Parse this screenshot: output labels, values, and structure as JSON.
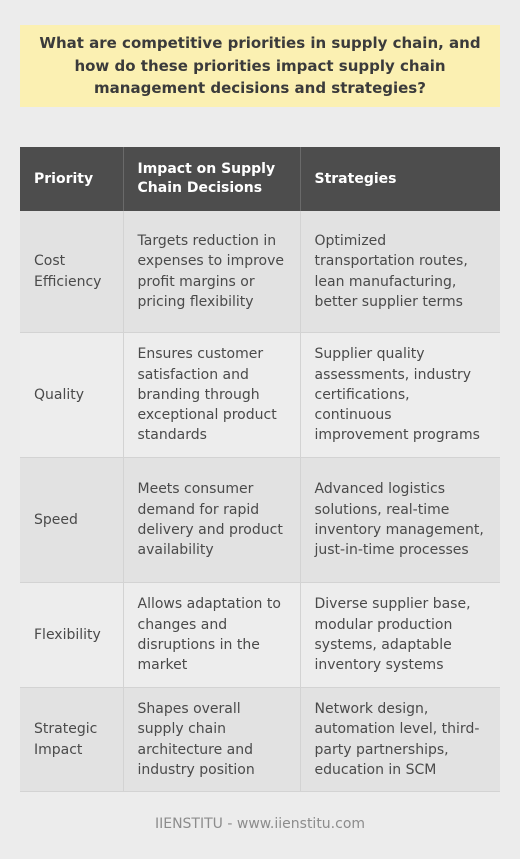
{
  "title": "What are competitive priorities in supply chain, and how do these priorities impact supply chain management decisions and strategies?",
  "table": {
    "headers": [
      "Priority",
      "Impact on Supply Chain Decisions",
      "Strategies"
    ],
    "rows": [
      [
        "Cost Efficiency",
        "Targets reduction in expenses to improve profit margins or pricing flexibility",
        "Optimized transportation routes, lean manufacturing, better supplier terms"
      ],
      [
        "Quality",
        "Ensures customer satisfaction and branding through exceptional product standards",
        "Supplier quality assessments, industry certifications, continuous improvement programs"
      ],
      [
        "Speed",
        "Meets consumer demand for rapid delivery and product availability",
        "Advanced logistics solutions, real-time inventory management, just-in-time processes"
      ],
      [
        "Flexibility",
        "Allows adaptation to changes and disruptions in the market",
        "Diverse supplier base, modular production systems, adaptable inventory systems"
      ],
      [
        "Strategic Impact",
        "Shapes overall supply chain architecture and industry position",
        "Network design, automation level, third-party partnerships, education in SCM"
      ]
    ]
  },
  "footer": "IIENSTITU - www.iienstitu.com"
}
